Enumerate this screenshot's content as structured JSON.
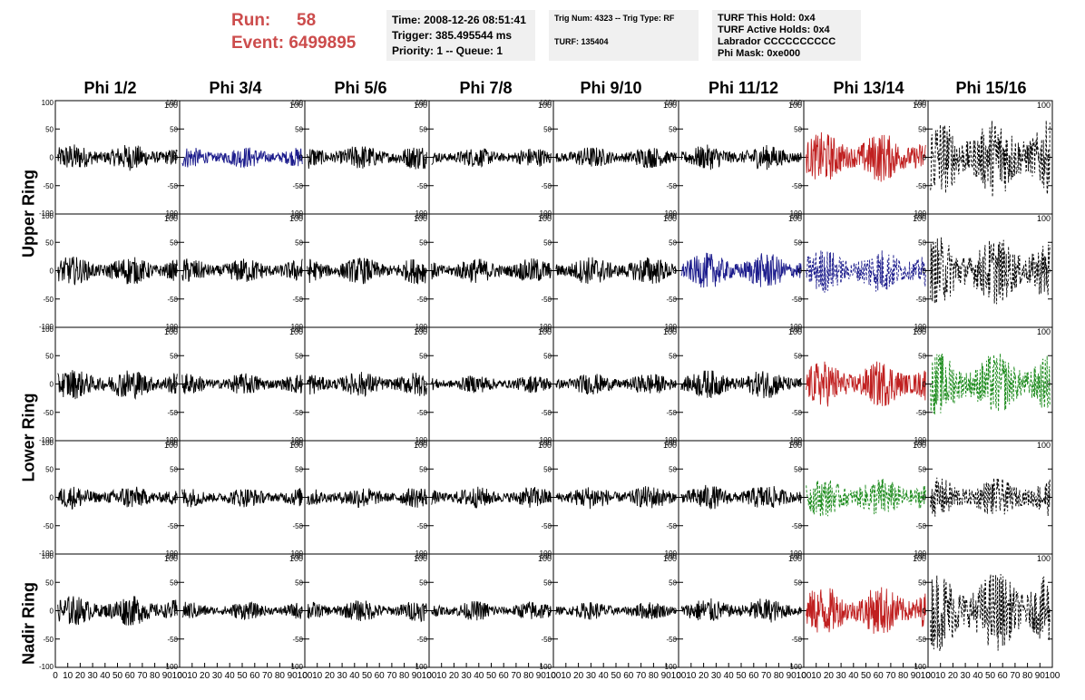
{
  "header": {
    "run_label": "Run:",
    "run_value": "58",
    "event_label": "Event:",
    "event_value": "6499895",
    "time": "Time: 2008-12-26 08:51:41",
    "trigger": "Trigger: 385.495544 ms",
    "priority": "Priority: 1 -- Queue: 1",
    "trig_num": "Trig Num: 4323 -- Trig Type: RF",
    "turf": "TURF: 135404",
    "turf_this_hold": "TURF This Hold: 0x4",
    "turf_active_holds": "TURF Active Holds: 0x4",
    "labrador": "Labrador CCCCCCCCCC",
    "phi_mask": "Phi Mask: 0xe000"
  },
  "columns": [
    "Phi 1/2",
    "Phi 3/4",
    "Phi 5/6",
    "Phi 7/8",
    "Phi 9/10",
    "Phi 11/12",
    "Phi 13/14",
    "Phi 15/16"
  ],
  "ring_labels": {
    "upper": "Upper Ring",
    "lower": "Lower Ring",
    "nadir": "Nadir Ring"
  },
  "chart_data": {
    "type": "line",
    "layout": "grid of 5 rows x 8 columns of waveform panels",
    "x_range": [
      0,
      100
    ],
    "y_range": [
      -100,
      100
    ],
    "y_ticks": [
      -100,
      -50,
      0,
      50,
      100
    ],
    "x_ticks": [
      0,
      10,
      20,
      30,
      40,
      50,
      60,
      70,
      80,
      90,
      100
    ],
    "colors": {
      "default": "#000000",
      "blue": "#1c1c8c",
      "red": "#c02020",
      "green": "#1a8a1a"
    },
    "panel_colors": [
      [
        "default",
        "blue",
        "default",
        "default",
        "default",
        "default",
        "red",
        "default"
      ],
      [
        "default",
        "default",
        "default",
        "default",
        "default",
        "blue",
        "blue",
        "default"
      ],
      [
        "default",
        "default",
        "default",
        "default",
        "default",
        "default",
        "red",
        "green"
      ],
      [
        "default",
        "default",
        "default",
        "default",
        "default",
        "default",
        "green",
        "default"
      ],
      [
        "default",
        "default",
        "default",
        "default",
        "default",
        "default",
        "red",
        "default"
      ]
    ],
    "panel_dashed": [
      [
        false,
        false,
        false,
        false,
        false,
        false,
        false,
        true
      ],
      [
        false,
        false,
        false,
        false,
        false,
        false,
        true,
        true
      ],
      [
        false,
        false,
        false,
        false,
        false,
        false,
        false,
        true
      ],
      [
        false,
        false,
        false,
        false,
        false,
        false,
        true,
        true
      ],
      [
        false,
        false,
        false,
        false,
        false,
        false,
        false,
        true
      ]
    ],
    "panel_amplitude": [
      [
        15,
        12,
        14,
        11,
        12,
        14,
        28,
        45
      ],
      [
        16,
        14,
        15,
        14,
        16,
        20,
        25,
        38
      ],
      [
        17,
        12,
        14,
        10,
        12,
        16,
        26,
        35
      ],
      [
        13,
        11,
        12,
        12,
        13,
        14,
        22,
        22
      ],
      [
        17,
        10,
        12,
        11,
        10,
        14,
        28,
        45
      ]
    ]
  }
}
